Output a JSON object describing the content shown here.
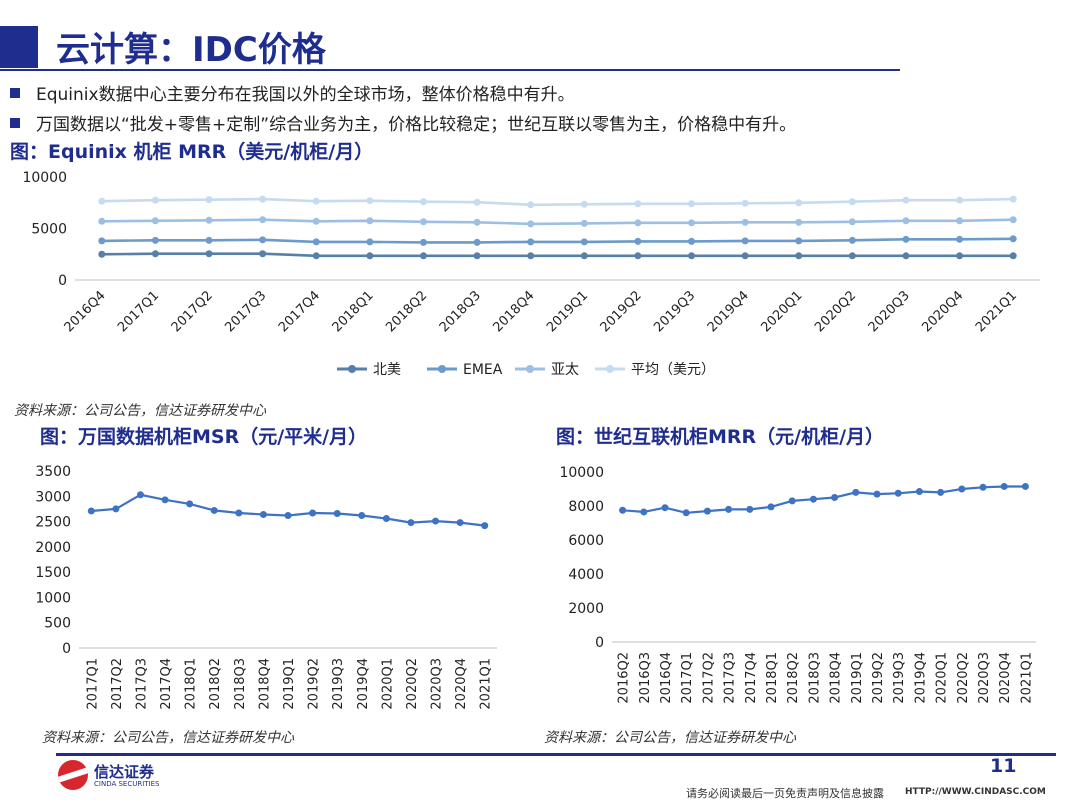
{
  "page": {
    "title": "云计算：IDC价格",
    "bullets": [
      "Equinix数据中心主要分布在我国以外的全球市场，整体价格稳中有升。",
      "万国数据以“批发+零售+定制”综合业务为主，价格比较稳定；世纪互联以零售为主，价格稳中有升。"
    ],
    "page_number": "11",
    "disclaimer": "请务必阅读最后一页免责声明及信息披露",
    "website": "HTTP://WWW.CINDASC.COM",
    "logo_text": "信达证券",
    "logo_subtext": "CINDA SECURITIES"
  },
  "colors": {
    "brand": "#1f2d8f",
    "series": [
      "#577fa8",
      "#6b9acb",
      "#9dbfe3",
      "#c6dbf1"
    ],
    "single_series": "#3e72c2"
  },
  "chart_data": [
    {
      "type": "line",
      "title": "图：Equinix 机柜 MRR（美元/机柜/月）",
      "source": "资料来源：公司公告，信达证券研发中心",
      "categories": [
        "2016Q4",
        "2017Q1",
        "2017Q2",
        "2017Q3",
        "2017Q4",
        "2018Q1",
        "2018Q2",
        "2018Q3",
        "2018Q4",
        "2019Q1",
        "2019Q2",
        "2019Q3",
        "2019Q4",
        "2020Q1",
        "2020Q2",
        "2020Q3",
        "2020Q4",
        "2021Q1"
      ],
      "yticks": [
        "0",
        "5000",
        "10000"
      ],
      "ylim": [
        0,
        10000
      ],
      "legend_position": "bottom",
      "grid": false,
      "series": [
        {
          "name": "北美",
          "values": [
            2500,
            2550,
            2550,
            2550,
            2350,
            2350,
            2350,
            2350,
            2350,
            2350,
            2350,
            2350,
            2350,
            2350,
            2350,
            2350,
            2350,
            2350
          ]
        },
        {
          "name": "EMEA",
          "values": [
            3800,
            3850,
            3850,
            3900,
            3700,
            3700,
            3650,
            3650,
            3700,
            3700,
            3750,
            3750,
            3800,
            3800,
            3850,
            3950,
            3950,
            4000
          ]
        },
        {
          "name": "亚太",
          "values": [
            5700,
            5750,
            5800,
            5850,
            5700,
            5750,
            5650,
            5600,
            5450,
            5500,
            5550,
            5550,
            5600,
            5600,
            5650,
            5750,
            5750,
            5850
          ]
        },
        {
          "name": "平均（美元）",
          "values": [
            7650,
            7750,
            7800,
            7850,
            7650,
            7700,
            7600,
            7550,
            7300,
            7350,
            7400,
            7400,
            7450,
            7500,
            7600,
            7750,
            7750,
            7850
          ]
        }
      ]
    },
    {
      "type": "line",
      "title": "图：万国数据机柜MSR（元/平米/月）",
      "source": "资料来源：公司公告，信达证券研发中心",
      "categories": [
        "2017Q1",
        "2017Q2",
        "2017Q3",
        "2017Q4",
        "2018Q1",
        "2018Q2",
        "2018Q3",
        "2018Q4",
        "2019Q1",
        "2019Q2",
        "2019Q3",
        "2019Q4",
        "2020Q1",
        "2020Q2",
        "2020Q3",
        "2020Q4",
        "2021Q1"
      ],
      "yticks": [
        "0",
        "500",
        "1000",
        "1500",
        "2000",
        "2500",
        "3000",
        "3500"
      ],
      "ylim": [
        0,
        3500
      ],
      "grid": false,
      "series": [
        {
          "values": [
            2710,
            2750,
            3030,
            2930,
            2850,
            2720,
            2670,
            2640,
            2620,
            2670,
            2660,
            2620,
            2560,
            2480,
            2510,
            2480,
            2420
          ]
        }
      ]
    },
    {
      "type": "line",
      "title": "图：世纪互联机柜MRR（元/机柜/月）",
      "source": "资料来源：公司公告，信达证券研发中心",
      "categories": [
        "2016Q2",
        "2016Q3",
        "2016Q4",
        "2017Q1",
        "2017Q2",
        "2017Q3",
        "2017Q4",
        "2018Q1",
        "2018Q2",
        "2018Q3",
        "2018Q4",
        "2019Q1",
        "2019Q2",
        "2019Q3",
        "2019Q4",
        "2020Q1",
        "2020Q2",
        "2020Q3",
        "2020Q4",
        "2021Q1"
      ],
      "yticks": [
        "0",
        "2000",
        "4000",
        "6000",
        "8000",
        "10000"
      ],
      "ylim": [
        0,
        10000
      ],
      "grid": false,
      "series": [
        {
          "values": [
            7750,
            7650,
            7900,
            7600,
            7700,
            7800,
            7800,
            7950,
            8300,
            8400,
            8500,
            8800,
            8700,
            8750,
            8850,
            8800,
            9000,
            9100,
            9150,
            9150
          ]
        }
      ]
    }
  ]
}
